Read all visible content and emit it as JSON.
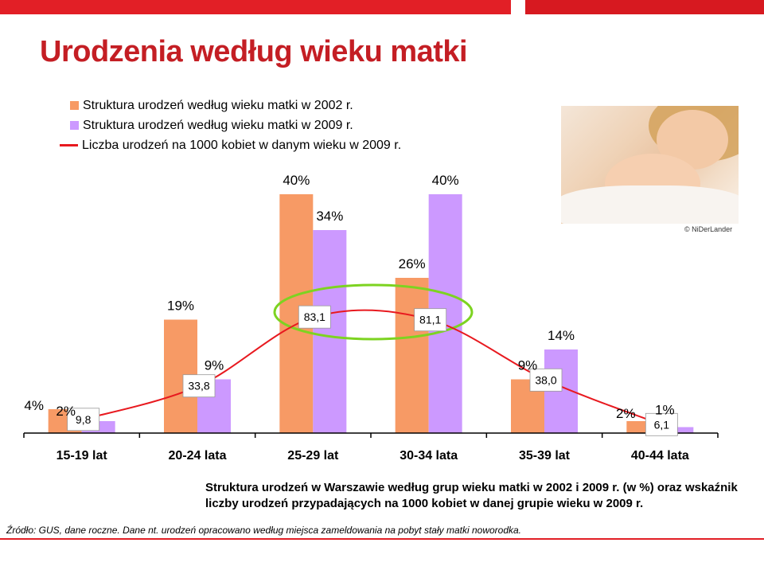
{
  "title": "Urodzenia według wieku matki",
  "legend": [
    {
      "label": "Struktura urodzeń według wieku matki w 2002 r.",
      "color": "#f79a65",
      "kind": "square"
    },
    {
      "label": "Struktura urodzeń według wieku matki w 2009 r.",
      "color": "#cc99ff",
      "kind": "square"
    },
    {
      "label": "Liczba urodzeń na 1000 kobiet w danym wieku w 2009 r.",
      "color": "#e8191f",
      "kind": "line"
    }
  ],
  "photo": {
    "icon": "mother-and-baby-photo",
    "credit": "© NiDerLander"
  },
  "caption": "Struktura urodzeń w Warszawie według grup wieku matki w 2002 i 2009 r. (w %) oraz wskaźnik liczby urodzeń przypadających na 1000 kobiet w danej grupie wieku w 2009 r.",
  "source": "Źródło: GUS, dane roczne. Dane nt. urodzeń opracowano według miejsca zameldowania na pobyt stały matki noworodka.",
  "chart_data": {
    "type": "bar",
    "categories": [
      "15-19 lat",
      "20-24 lata",
      "25-29 lat",
      "30-34 lata",
      "35-39 lat",
      "40-44 lata"
    ],
    "series": [
      {
        "name": "Struktura urodzeń według wieku matki w 2002 r.",
        "values": [
          4,
          19,
          40,
          26,
          9,
          2
        ],
        "labels": [
          "4%",
          "19%",
          "40%",
          "26%",
          "9%",
          "2%"
        ],
        "color": "#f79a65"
      },
      {
        "name": "Struktura urodzeń według wieku matki w 2009 r.",
        "values": [
          2,
          9,
          34,
          40,
          14,
          1
        ],
        "labels": [
          "2%",
          "9%",
          "34%",
          "40%",
          "14%",
          "1%"
        ],
        "color": "#cc99ff"
      }
    ],
    "rate_series": {
      "name": "Liczba urodzeń na 1000 kobiet w danym wieku w 2009 r.",
      "values": [
        9.8,
        33.8,
        83.1,
        81.1,
        38.0,
        6.1
      ],
      "labels": [
        "9,8",
        "33,8",
        "83,1",
        "81,1",
        "38,0",
        "6,1"
      ],
      "color": "#e8191f"
    },
    "highlight": {
      "categories": [
        "25-29 lat",
        "30-34 lata"
      ],
      "color": "#7dd321"
    },
    "ylim": [
      0,
      40
    ],
    "grid": false,
    "legend_position": "top-left"
  }
}
